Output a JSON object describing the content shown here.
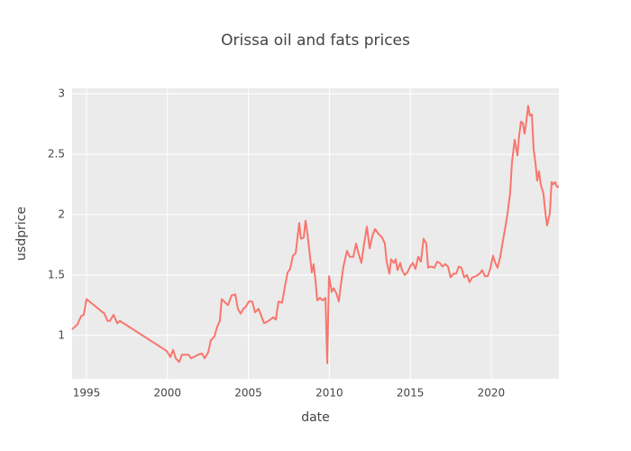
{
  "chart_data": {
    "type": "line",
    "title": "Orissa oil and fats prices",
    "x_label": "date",
    "y_label": "usdprice",
    "color": "#f8766d",
    "grid": true,
    "xlim": [
      1994.11,
      2024.18
    ],
    "xticks": [
      1995,
      2000,
      2005,
      2010,
      2015,
      2020
    ],
    "ylim": [
      0.64,
      3.045
    ],
    "yticks": [
      1,
      1.5,
      2,
      2.5,
      3
    ],
    "x": [
      1994.11,
      1994.44,
      1994.67,
      1994.83,
      1995.0,
      1996.1,
      1996.3,
      1996.45,
      1996.67,
      1996.9,
      1997.06,
      1999.96,
      2000.18,
      2000.35,
      2000.51,
      2000.73,
      2000.9,
      2001.12,
      2001.3,
      2001.46,
      2001.9,
      2002.13,
      2002.3,
      2002.52,
      2002.68,
      2002.9,
      2003.07,
      2003.24,
      2003.35,
      2003.74,
      2003.96,
      2004.19,
      2004.35,
      2004.52,
      2004.69,
      2004.86,
      2005.02,
      2005.24,
      2005.41,
      2005.63,
      2005.8,
      2005.97,
      2006.25,
      2006.53,
      2006.69,
      2006.86,
      2007.08,
      2007.25,
      2007.42,
      2007.58,
      2007.75,
      2007.92,
      2008.14,
      2008.25,
      2008.42,
      2008.53,
      2008.64,
      2008.81,
      2008.92,
      2009.03,
      2009.14,
      2009.25,
      2009.42,
      2009.59,
      2009.76,
      2009.87,
      2009.98,
      2010.15,
      2010.26,
      2010.43,
      2010.59,
      2010.7,
      2010.87,
      2011.09,
      2011.26,
      2011.48,
      2011.65,
      2011.82,
      2011.98,
      2012.15,
      2012.32,
      2012.49,
      2012.65,
      2012.82,
      2013.04,
      2013.26,
      2013.43,
      2013.54,
      2013.71,
      2013.82,
      2013.99,
      2014.1,
      2014.21,
      2014.38,
      2014.49,
      2014.66,
      2014.82,
      2014.99,
      2015.16,
      2015.32,
      2015.49,
      2015.66,
      2015.82,
      2015.99,
      2016.1,
      2016.27,
      2016.49,
      2016.66,
      2016.82,
      2016.99,
      2017.16,
      2017.33,
      2017.49,
      2017.66,
      2017.83,
      2018.0,
      2018.16,
      2018.33,
      2018.5,
      2018.66,
      2018.83,
      2019.05,
      2019.28,
      2019.44,
      2019.61,
      2019.78,
      2019.94,
      2020.11,
      2020.22,
      2020.39,
      2020.56,
      2020.72,
      2020.89,
      2021.0,
      2021.17,
      2021.28,
      2021.45,
      2021.62,
      2021.73,
      2021.84,
      2021.95,
      2022.06,
      2022.17,
      2022.28,
      2022.39,
      2022.51,
      2022.62,
      2022.73,
      2022.84,
      2022.95,
      2023.06,
      2023.23,
      2023.34,
      2023.45,
      2023.62,
      2023.73,
      2023.84,
      2023.95,
      2024.06,
      2024.18
    ],
    "values": [
      1.05,
      1.09,
      1.16,
      1.17,
      1.3,
      1.18,
      1.12,
      1.12,
      1.17,
      1.1,
      1.12,
      0.87,
      0.82,
      0.88,
      0.81,
      0.78,
      0.84,
      0.84,
      0.84,
      0.81,
      0.84,
      0.85,
      0.81,
      0.86,
      0.96,
      0.99,
      1.07,
      1.12,
      1.3,
      1.25,
      1.33,
      1.34,
      1.22,
      1.18,
      1.22,
      1.24,
      1.28,
      1.28,
      1.19,
      1.22,
      1.16,
      1.1,
      1.12,
      1.15,
      1.13,
      1.28,
      1.27,
      1.4,
      1.52,
      1.55,
      1.66,
      1.68,
      1.93,
      1.8,
      1.81,
      1.95,
      1.85,
      1.65,
      1.52,
      1.59,
      1.46,
      1.29,
      1.31,
      1.29,
      1.31,
      0.77,
      1.49,
      1.36,
      1.39,
      1.35,
      1.28,
      1.41,
      1.57,
      1.7,
      1.65,
      1.65,
      1.76,
      1.67,
      1.6,
      1.76,
      1.9,
      1.72,
      1.82,
      1.88,
      1.84,
      1.81,
      1.76,
      1.61,
      1.51,
      1.63,
      1.6,
      1.63,
      1.54,
      1.6,
      1.54,
      1.5,
      1.52,
      1.57,
      1.6,
      1.55,
      1.65,
      1.61,
      1.8,
      1.76,
      1.56,
      1.57,
      1.56,
      1.61,
      1.6,
      1.57,
      1.59,
      1.57,
      1.48,
      1.51,
      1.51,
      1.57,
      1.56,
      1.48,
      1.5,
      1.44,
      1.48,
      1.49,
      1.51,
      1.54,
      1.49,
      1.49,
      1.55,
      1.66,
      1.61,
      1.56,
      1.65,
      1.78,
      1.91,
      2.0,
      2.18,
      2.43,
      2.62,
      2.49,
      2.66,
      2.77,
      2.76,
      2.67,
      2.77,
      2.9,
      2.82,
      2.83,
      2.54,
      2.43,
      2.28,
      2.36,
      2.25,
      2.17,
      2.02,
      1.91,
      2.01,
      2.27,
      2.25,
      2.27,
      2.23,
      2.23
    ]
  }
}
